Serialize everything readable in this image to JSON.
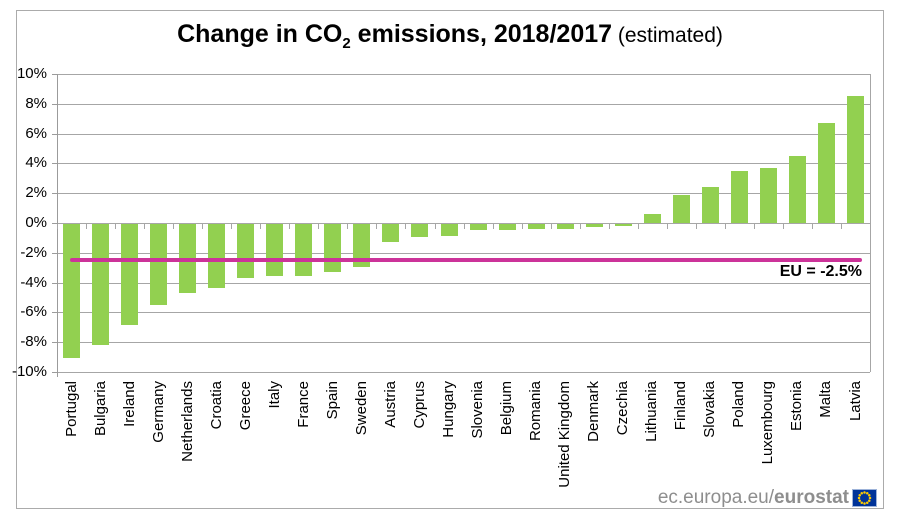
{
  "header": {
    "title_pre": "Change in CO",
    "title_sub": "2",
    "title_post": " emissions, 2018/2017",
    "title_note": " (estimated)"
  },
  "chart_data": {
    "type": "bar",
    "title": "Change in CO2 emissions, 2018/2017 (estimated)",
    "categories": [
      "Portugal",
      "Bulgaria",
      "Ireland",
      "Germany",
      "Netherlands",
      "Croatia",
      "Greece",
      "Italy",
      "France",
      "Spain",
      "Sweden",
      "Austria",
      "Cyprus",
      "Hungary",
      "Slovenia",
      "Belgium",
      "Romania",
      "United Kingdom",
      "Denmark",
      "Czechia",
      "Lithuania",
      "Finland",
      "Slovakia",
      "Poland",
      "Luxembourg",
      "Estonia",
      "Malta",
      "Latvia"
    ],
    "values": [
      -9.0,
      -8.1,
      -6.8,
      -5.4,
      -4.6,
      -4.3,
      -3.6,
      -3.5,
      -3.5,
      -3.2,
      -2.9,
      -1.2,
      -0.9,
      -0.8,
      -0.4,
      -0.4,
      -0.3,
      -0.3,
      -0.2,
      -0.1,
      0.6,
      1.9,
      2.4,
      3.5,
      3.7,
      4.5,
      6.7,
      8.5
    ],
    "ylim": [
      -10,
      10
    ],
    "ytick_step": 2,
    "yticks": [
      {
        "value": 10,
        "label": "10%"
      },
      {
        "value": 8,
        "label": "8%"
      },
      {
        "value": 6,
        "label": "6%"
      },
      {
        "value": 4,
        "label": "4%"
      },
      {
        "value": 2,
        "label": "2%"
      },
      {
        "value": 0,
        "label": "0%"
      },
      {
        "value": -2,
        "label": "-2%"
      },
      {
        "value": -4,
        "label": "-4%"
      },
      {
        "value": -6,
        "label": "-6%"
      },
      {
        "value": -8,
        "label": "-8%"
      },
      {
        "value": -10,
        "label": "-10%"
      }
    ],
    "grid": true,
    "bar_color": "#92D050",
    "grid_color": "#A6A6A6",
    "axis_color": "#9B9B9B",
    "reference_line": {
      "label": "EU = -2.5%",
      "value": -2.5,
      "color": "#CC3399"
    },
    "legend_position": "none"
  },
  "footer": {
    "url_prefix": "ec.europa.eu/",
    "url_bold": "eurostat",
    "flag": {
      "background": "#003399",
      "stars": "#FFCC00",
      "border": "#9DB3D9"
    }
  }
}
